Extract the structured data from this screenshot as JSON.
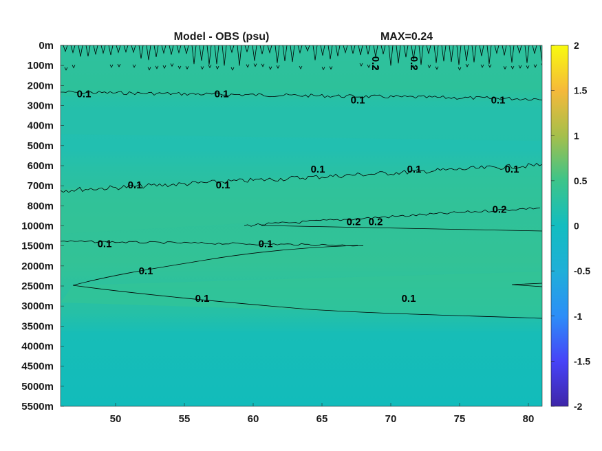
{
  "chart_data": {
    "type": "heatmap",
    "title": "Model - OBS (psu)",
    "annotation": "MAX=0.24",
    "x_ticks": [
      50,
      55,
      60,
      65,
      70,
      75,
      80
    ],
    "xlim": [
      46,
      81
    ],
    "y_tick_labels": [
      "0m",
      "100m",
      "200m",
      "300m",
      "400m",
      "500m",
      "600m",
      "700m",
      "800m",
      "1000m",
      "1500m",
      "2000m",
      "2500m",
      "3000m",
      "3500m",
      "4000m",
      "4500m",
      "5000m",
      "5500m"
    ],
    "colorbar": {
      "range": [
        -2,
        2
      ],
      "ticks": [
        2,
        1.5,
        1,
        0.5,
        0,
        -0.5,
        -1,
        -1.5,
        -2
      ],
      "colormap": [
        "#3e26a8",
        "#4743f8",
        "#2c8ef8",
        "#13bdc7",
        "#2ebf93",
        "#84c45b",
        "#dbbc2e",
        "#f5e51d",
        "#f9fb0e"
      ]
    },
    "contour_labels": [
      {
        "text": "0.1",
        "x": 47.7,
        "depth": "200m"
      },
      {
        "text": "0.1",
        "x": 57.7,
        "depth": "200m"
      },
      {
        "text": "0.1",
        "x": 67.6,
        "depth": "300m"
      },
      {
        "text": "0.1",
        "x": 77.8,
        "depth": "300m"
      },
      {
        "text": "0.1",
        "x": 51.4,
        "depth": "700m"
      },
      {
        "text": "0.1",
        "x": 57.8,
        "depth": "700m"
      },
      {
        "text": "0.1",
        "x": 64.7,
        "depth": "600m"
      },
      {
        "text": "0.1",
        "x": 71.7,
        "depth": "600m"
      },
      {
        "text": "0.1",
        "x": 78.8,
        "depth": "600m"
      },
      {
        "text": "0.2",
        "x": 67.3,
        "depth": "1000m"
      },
      {
        "text": "0.2",
        "x": 68.9,
        "depth": "1000m"
      },
      {
        "text": "0.2",
        "x": 77.9,
        "depth": "800m"
      },
      {
        "text": "0.1",
        "x": 49.2,
        "depth": "1500m"
      },
      {
        "text": "0.1",
        "x": 60.9,
        "depth": "1500m"
      },
      {
        "text": "0.1",
        "x": 52.2,
        "depth": "2000m"
      },
      {
        "text": "0.1",
        "x": 56.3,
        "depth": "3000m"
      },
      {
        "text": "0.1",
        "x": 71.3,
        "depth": "3000m"
      },
      {
        "text": "0.2",
        "x": 68.9,
        "depth": "100m"
      },
      {
        "text": "0.2",
        "x": 71.7,
        "depth": "100m"
      }
    ],
    "grid": false,
    "colors": {
      "background_field": "#2ec19a",
      "deep_field": "#14bcb8",
      "contour_line": "#000000"
    }
  }
}
